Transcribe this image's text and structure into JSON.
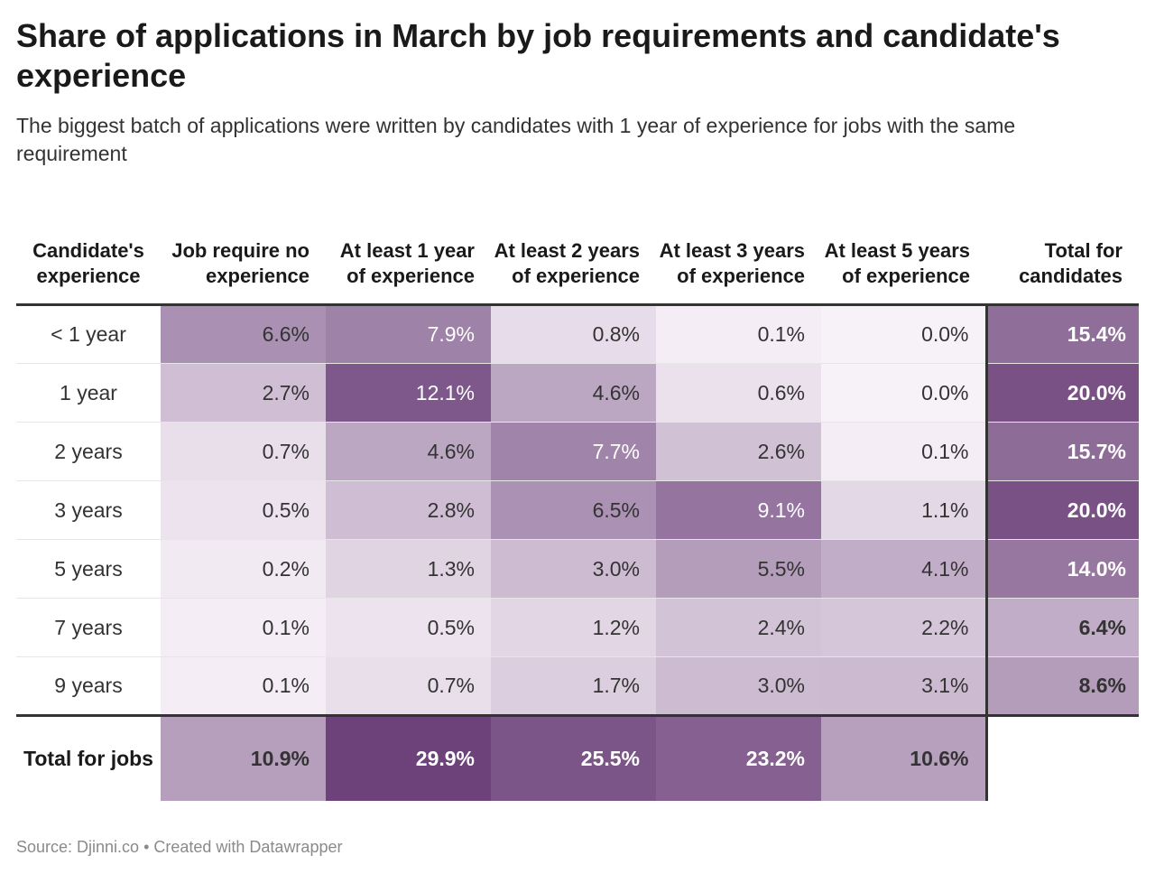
{
  "title": "Share of applications in March by job requirements and candidate's experience",
  "subtitle": "The biggest batch of applications were written by candidates with 1 year of experience for jobs with the same requirement",
  "source": "Source: Djinni.co • Created with Datawrapper",
  "colors": {
    "scale_low": "#f7f1f8",
    "scale_high": "#623470",
    "text_dark": "#333333",
    "text_light": "#ffffff"
  },
  "chart_data": {
    "type": "table",
    "columns": [
      "Candidate's experience",
      "Job require no experience",
      "At least 1 year of experience",
      "At least 2 years of experience",
      "At least 3 years of experience",
      "At least 5 years of experience",
      "Total for candidates"
    ],
    "rows": [
      {
        "label": "< 1 year",
        "values": [
          6.6,
          7.9,
          0.8,
          0.1,
          0.0
        ],
        "total": 15.4
      },
      {
        "label": "1 year",
        "values": [
          2.7,
          12.1,
          4.6,
          0.6,
          0.0
        ],
        "total": 20.0
      },
      {
        "label": "2 years",
        "values": [
          0.7,
          4.6,
          7.7,
          2.6,
          0.1
        ],
        "total": 15.7
      },
      {
        "label": "3 years",
        "values": [
          0.5,
          2.8,
          6.5,
          9.1,
          1.1
        ],
        "total": 20.0
      },
      {
        "label": "5 years",
        "values": [
          0.2,
          1.3,
          3.0,
          5.5,
          4.1
        ],
        "total": 14.0
      },
      {
        "label": "7 years",
        "values": [
          0.1,
          0.5,
          1.2,
          2.4,
          2.2
        ],
        "total": 6.4
      },
      {
        "label": "9 years",
        "values": [
          0.1,
          0.7,
          1.7,
          3.0,
          3.1
        ],
        "total": 8.6
      }
    ],
    "footer": {
      "label": "Total for jobs",
      "values": [
        10.9,
        29.9,
        25.5,
        23.2,
        10.6
      ]
    },
    "unit": "%"
  }
}
